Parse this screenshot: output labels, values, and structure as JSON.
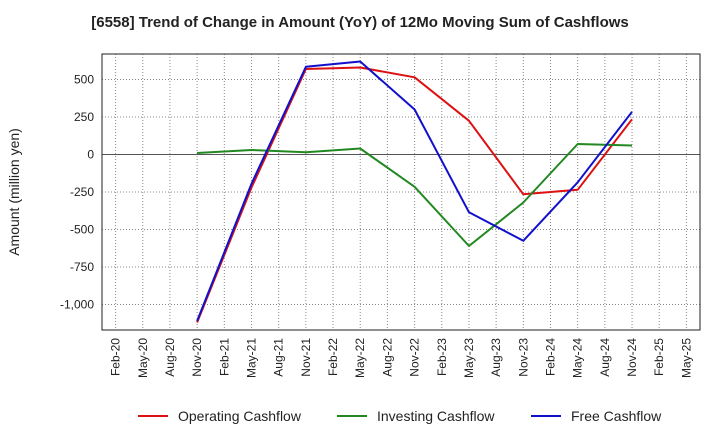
{
  "chart_data": {
    "type": "line",
    "title": "[6558]  Trend of Change in Amount (YoY) of 12Mo Moving Sum of Cashflows",
    "xlabel": "",
    "ylabel": "Amount (million yen)",
    "categories": [
      "Feb-20",
      "May-20",
      "Aug-20",
      "Nov-20",
      "Feb-21",
      "May-21",
      "Aug-21",
      "Nov-21",
      "Feb-22",
      "May-22",
      "Aug-22",
      "Nov-22",
      "Feb-23",
      "May-23",
      "Aug-23",
      "Nov-23",
      "Feb-24",
      "May-24",
      "Aug-24",
      "Nov-24",
      "Feb-25",
      "May-25"
    ],
    "ylim": [
      -1170,
      670
    ],
    "yticks": [
      500,
      250,
      0,
      -250,
      -500,
      -750,
      -1000
    ],
    "ytick_labels": [
      "500",
      "250",
      "0",
      "-250",
      "-500",
      "-750",
      "-1,000"
    ],
    "grid": true,
    "legend_position": "bottom",
    "series": [
      {
        "name": "Operating Cashflow",
        "color": "#dd1111",
        "values": [
          null,
          null,
          null,
          -1120,
          null,
          -220,
          null,
          570,
          null,
          580,
          null,
          515,
          null,
          225,
          null,
          -265,
          null,
          -235,
          null,
          235,
          null,
          null
        ]
      },
      {
        "name": "Investing Cashflow",
        "color": "#228822",
        "values": [
          null,
          null,
          null,
          10,
          null,
          30,
          null,
          15,
          null,
          40,
          null,
          -215,
          null,
          -610,
          null,
          -320,
          null,
          70,
          null,
          60,
          null,
          null
        ]
      },
      {
        "name": "Free Cashflow",
        "color": "#1111cc",
        "values": [
          null,
          null,
          null,
          -1110,
          null,
          -195,
          null,
          585,
          null,
          620,
          null,
          300,
          null,
          -385,
          null,
          -575,
          null,
          -185,
          null,
          285,
          null,
          null
        ]
      }
    ]
  }
}
